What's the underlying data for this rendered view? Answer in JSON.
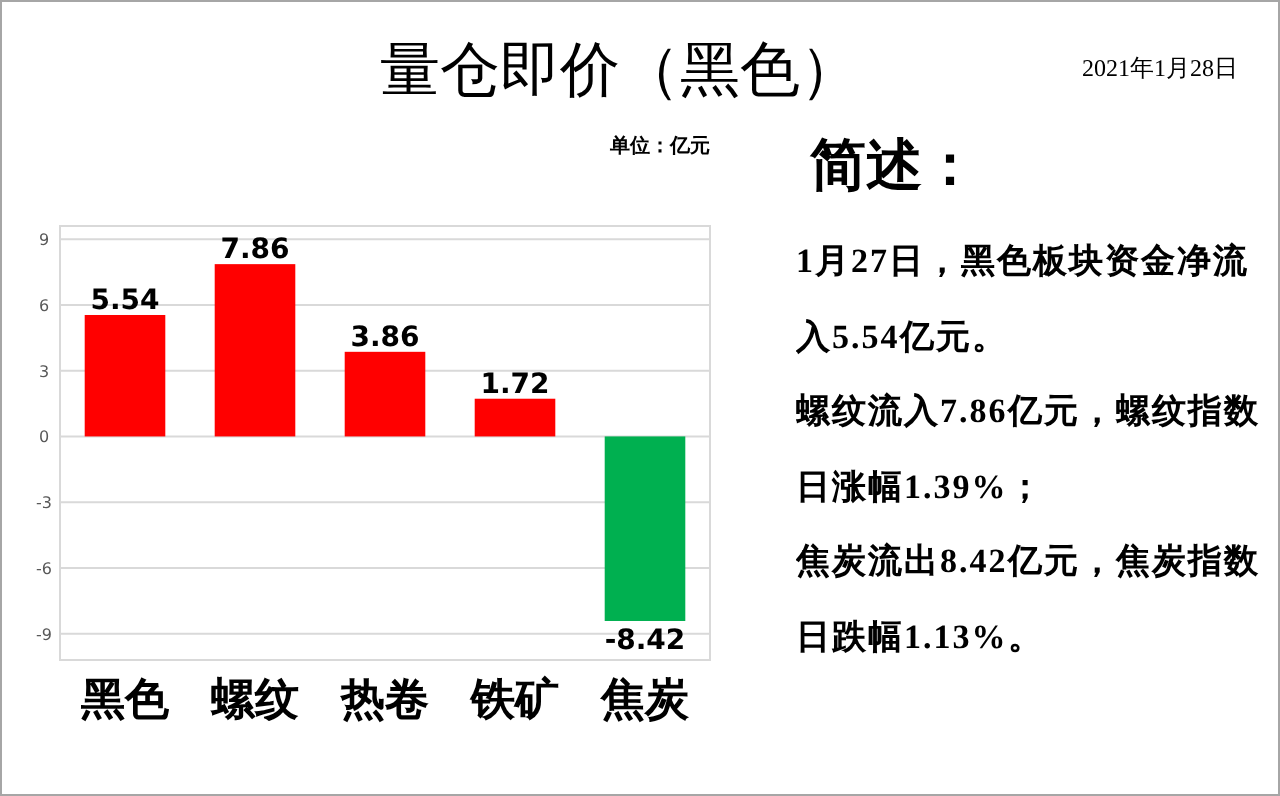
{
  "chart_data": {
    "type": "bar",
    "title": "量仓即价（黑色）",
    "categories": [
      "黑色",
      "螺纹",
      "热卷",
      "铁矿",
      "焦炭"
    ],
    "values": [
      5.54,
      7.86,
      3.86,
      1.72,
      -8.42
    ],
    "colors": [
      "#ff0000",
      "#ff0000",
      "#ff0000",
      "#ff0000",
      "#00b050"
    ],
    "ylim": [
      -10.2,
      9.6
    ],
    "yticks": [
      -9,
      -6,
      -3,
      0,
      3,
      6,
      9
    ],
    "grid": "y",
    "data_labels": true,
    "annotations": [
      "单位：亿元",
      "简述：",
      "1月27日，黑色板块资金净流入5.54亿元。",
      "螺纹流入7.86亿元，螺纹指数日涨幅1.39%；",
      "焦炭流出8.42亿元，焦炭指数日跌幅1.13%。",
      "2021年1月28日"
    ]
  }
}
